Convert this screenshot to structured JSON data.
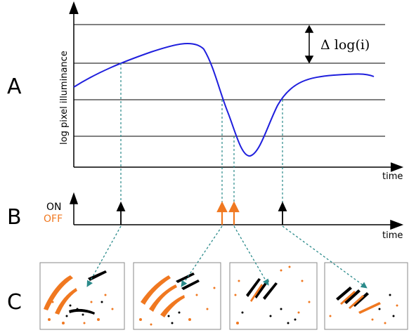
{
  "panels": {
    "a": {
      "letter": "A",
      "ylabel": "log pixel illuminance",
      "xlabel": "time",
      "threshold_label": "Δ log(i)"
    },
    "b": {
      "letter": "B",
      "on_label": "ON",
      "off_label": "OFF",
      "xlabel": "time"
    },
    "c": {
      "letter": "C"
    }
  },
  "colors": {
    "curve": "#1f1fdd",
    "on_event": "#000000",
    "off_event": "#f07820",
    "connector": "#2a8a8a",
    "gridline": "#000000"
  },
  "events": [
    {
      "polarity": "ON"
    },
    {
      "polarity": "OFF"
    },
    {
      "polarity": "OFF"
    },
    {
      "polarity": "ON"
    }
  ],
  "thumbnails": [
    {
      "description": "event frame 1"
    },
    {
      "description": "event frame 2"
    },
    {
      "description": "event frame 3"
    },
    {
      "description": "event frame 4"
    }
  ]
}
